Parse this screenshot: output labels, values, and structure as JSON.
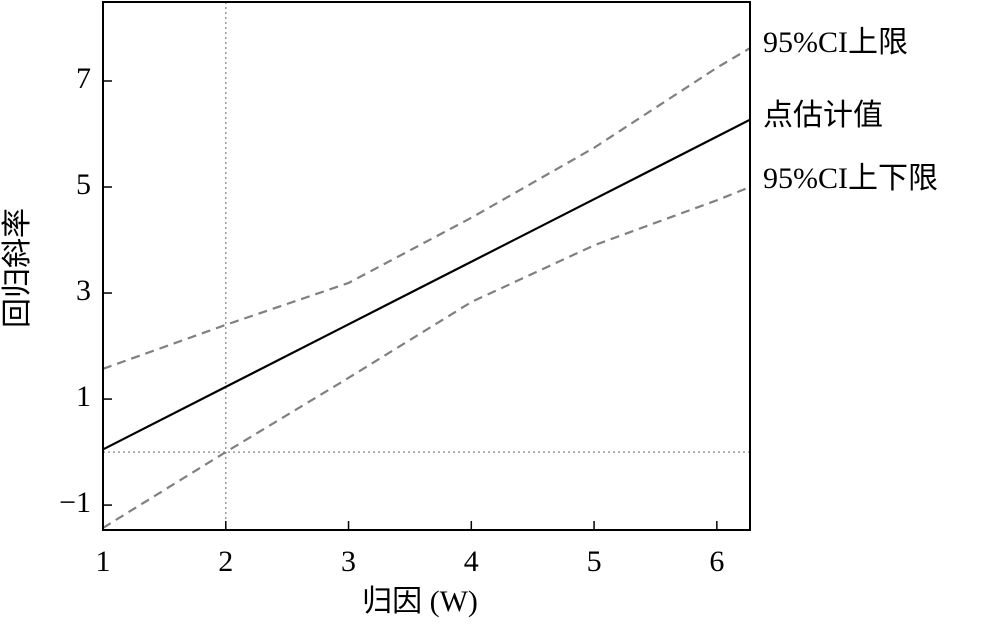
{
  "chart_data": {
    "type": "line",
    "xlabel": "归因 (W)",
    "ylabel": "回归斜率",
    "x": [
      1,
      2,
      3,
      4,
      5,
      6,
      6.27
    ],
    "series": [
      {
        "name": "95%CI上限",
        "color": "#808080",
        "dashed": true,
        "values": [
          1.57,
          2.4,
          3.19,
          4.42,
          5.74,
          7.25,
          7.62
        ]
      },
      {
        "name": "点估计值",
        "color": "#000000",
        "dashed": false,
        "values": [
          0.05,
          1.23,
          2.41,
          3.59,
          4.77,
          5.95,
          6.27
        ]
      },
      {
        "name": "95%CI上下限",
        "color": "#808080",
        "dashed": true,
        "values": [
          -1.43,
          0.0,
          1.4,
          2.83,
          3.9,
          4.75,
          5.0
        ]
      }
    ],
    "xlim": [
      1,
      6.27
    ],
    "ylim": [
      -1.47,
      8.49
    ],
    "xticks": [
      1,
      2,
      3,
      4,
      5,
      6
    ],
    "yticks": [
      {
        "value": -1,
        "label": "−1"
      },
      1,
      3,
      5,
      7
    ],
    "reference_x": 2,
    "reference_y": 0
  }
}
